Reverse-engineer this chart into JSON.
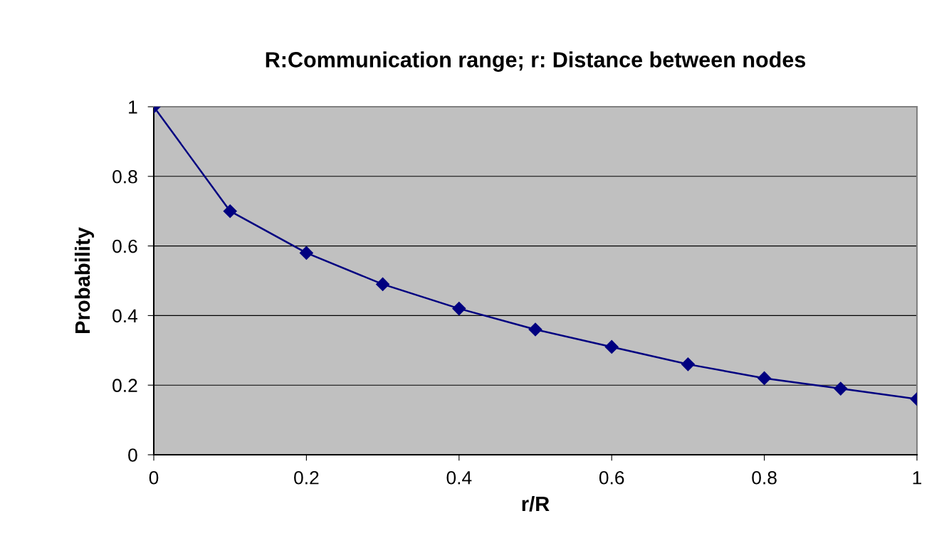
{
  "chart_data": {
    "type": "line",
    "title": "R:Communication range; r: Distance between nodes",
    "xlabel": "r/R",
    "ylabel": "Probability",
    "x": [
      0,
      0.1,
      0.2,
      0.3,
      0.4,
      0.5,
      0.6,
      0.7,
      0.8,
      0.9,
      1
    ],
    "series": [
      {
        "color": "#000080",
        "values": [
          1,
          0.7,
          0.58,
          0.49,
          0.42,
          0.36,
          0.31,
          0.26,
          0.22,
          0.19,
          0.16
        ]
      }
    ],
    "xlim": [
      0,
      1
    ],
    "xticks": [
      0,
      0.2,
      0.4,
      0.6,
      0.8,
      1
    ],
    "ylim": [
      0,
      1
    ],
    "yticks": [
      0,
      0.2,
      0.4,
      0.6,
      0.8,
      1
    ],
    "grid": "y",
    "marker": "diamond",
    "line_style": "solid"
  }
}
